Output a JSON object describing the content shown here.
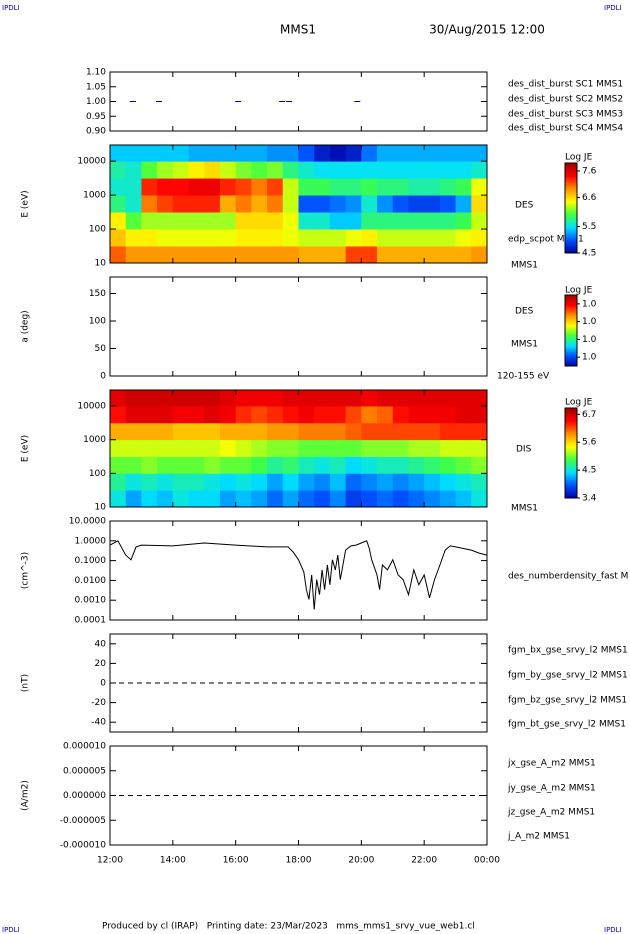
{
  "header": {
    "tag_left": "IPDLI",
    "tag_right": "IPDLI",
    "title": "MMS1",
    "date": "30/Aug/2015 12:00"
  },
  "footer": {
    "tag_left": "IPDLI",
    "tag_right": "IPDLI",
    "text": "Produced by cl (IRAP)   Printing date: 23/Mar/2023   mms_mms1_srvy_vue_web1.cl"
  },
  "colormap": [
    "#0000a0",
    "#0050ff",
    "#00e0ff",
    "#40ff40",
    "#ffff00",
    "#ff9000",
    "#ff0000",
    "#a00000"
  ],
  "chart_data": [
    {
      "type": "scatter",
      "xlim": [
        12,
        24
      ],
      "ylim": [
        0.9,
        1.1
      ],
      "yticks": [
        {
          "value": 0.9,
          "label": "0.90"
        },
        {
          "value": 0.95,
          "label": "0.95"
        },
        {
          "value": 1,
          "label": "1.00"
        },
        {
          "value": 1.05,
          "label": "1.05"
        },
        {
          "value": 1.1,
          "label": "1.10"
        }
      ],
      "series": [
        {
          "name": "des_dist_burst SC1 MMS1",
          "color": "#0000cc",
          "x": [
            12.73,
            13.56,
            16.08,
            17.48,
            17.7,
            19.87
          ],
          "values": [
            1,
            1,
            1,
            1,
            1,
            1
          ]
        },
        {
          "name": "des_dist_burst SC2 MMS2",
          "color": "#cc00cc"
        },
        {
          "name": "des_dist_burst SC3 MMS3",
          "color": "#dd0000"
        },
        {
          "name": "des_dist_burst SC4 MMS4",
          "color": "#00bb00"
        }
      ]
    },
    {
      "type": "heatmap",
      "ylabel": "E (eV)",
      "ylog": true,
      "xlim": [
        12,
        24
      ],
      "ylim": [
        10,
        30000
      ],
      "yticks": [
        10,
        100,
        1000,
        10000
      ],
      "xbins": [
        12,
        12.5,
        13,
        13.5,
        14,
        14.5,
        15,
        15.5,
        16,
        16.5,
        17,
        17.5,
        18,
        18.5,
        19,
        19.5,
        20,
        20.5,
        21,
        21.5,
        22,
        22.5,
        23,
        23.5,
        24
      ],
      "ybins": [
        10,
        31.6,
        100,
        316,
        1000,
        3162,
        10000,
        30000
      ],
      "z": [
        [
          7.1,
          6.9,
          6.9,
          6.9,
          6.9,
          6.9,
          6.9,
          6.9,
          6.9,
          6.9,
          6.9,
          6.9,
          6.8,
          6.8,
          6.8,
          7.2,
          7.2,
          6.8,
          6.8,
          6.8,
          6.8,
          6.8,
          6.8,
          6.9
        ],
        [
          6.7,
          6.5,
          6.5,
          6.4,
          6.4,
          6.4,
          6.4,
          6.4,
          6.5,
          6.5,
          6.5,
          6.4,
          6.3,
          6.3,
          6.3,
          6.4,
          6.5,
          6.3,
          6.3,
          6.3,
          6.3,
          6.3,
          6.4,
          6.5
        ],
        [
          6.5,
          6.0,
          6.2,
          6.2,
          6.2,
          6.2,
          6.2,
          6.2,
          6.6,
          6.6,
          6.6,
          6.4,
          5.6,
          5.6,
          5.4,
          5.4,
          5.8,
          5.8,
          5.8,
          5.8,
          5.8,
          5.8,
          5.9,
          6.3
        ],
        [
          5.8,
          5.6,
          7.0,
          7.2,
          7.3,
          7.3,
          7.3,
          6.8,
          7.0,
          6.8,
          7.0,
          6.3,
          5.0,
          5.0,
          5.1,
          5.2,
          5.6,
          5.2,
          5.0,
          4.9,
          4.9,
          5.0,
          5.3,
          6.6
        ],
        [
          5.6,
          5.6,
          7.3,
          7.4,
          7.4,
          7.5,
          7.5,
          7.3,
          7.2,
          7.0,
          7.2,
          6.3,
          5.9,
          5.9,
          5.8,
          5.8,
          5.9,
          5.8,
          5.8,
          5.7,
          5.7,
          5.8,
          5.9,
          6.4
        ],
        [
          5.7,
          5.6,
          6.0,
          6.2,
          6.3,
          6.5,
          6.6,
          6.3,
          6.1,
          6.0,
          6.1,
          5.8,
          5.6,
          5.5,
          5.5,
          5.5,
          5.5,
          5.5,
          5.5,
          5.5,
          5.5,
          5.5,
          5.5,
          5.6
        ],
        [
          5.4,
          5.4,
          5.4,
          5.4,
          5.4,
          5.3,
          5.3,
          5.3,
          5.3,
          5.3,
          5.2,
          5.2,
          5.0,
          4.7,
          4.6,
          4.7,
          5.1,
          5.3,
          5.3,
          5.3,
          5.3,
          5.3,
          5.3,
          5.3
        ]
      ],
      "colorbar": {
        "title": "Log JE",
        "clim": [
          4.5,
          7.9
        ],
        "ticks": [
          7.6,
          6.6,
          5.5,
          4.5
        ]
      },
      "labels": [
        "DES",
        "edp_scpot MMS1",
        "MMS1"
      ]
    },
    {
      "type": "heatmap",
      "ylabel": "a (deg)",
      "xlim": [
        12,
        24
      ],
      "ylim": [
        0,
        180
      ],
      "yticks": [
        0,
        50,
        100,
        150
      ],
      "colorbar": {
        "title": "Log JE",
        "clim": [
          0.96,
          1.04
        ],
        "ticks": [
          {
            "value": 1.03,
            "label": "1.0"
          },
          {
            "value": 1.01,
            "label": "1.0"
          },
          {
            "value": 0.99,
            "label": "1.0"
          },
          {
            "value": 0.97,
            "label": "1.0"
          }
        ]
      },
      "labels": [
        "DES",
        "MMS1",
        "120-155 eV"
      ]
    },
    {
      "type": "heatmap",
      "ylabel": "E (eV)",
      "ylog": true,
      "xlim": [
        12,
        24
      ],
      "ylim": [
        10,
        30000
      ],
      "yticks": [
        10,
        100,
        1000,
        10000
      ],
      "xbins": [
        12,
        12.5,
        13,
        13.5,
        14,
        14.5,
        15,
        15.5,
        16,
        16.5,
        17,
        17.5,
        18,
        18.5,
        19,
        19.5,
        20,
        20.5,
        21,
        21.5,
        22,
        22.5,
        23,
        23.5,
        24
      ],
      "ybins": [
        10,
        31.6,
        100,
        316,
        1000,
        3162,
        10000,
        30000
      ],
      "z": [
        [
          4.5,
          4.2,
          4.4,
          4.3,
          4.5,
          4.4,
          4.4,
          4.2,
          4.3,
          4.2,
          4.0,
          4.2,
          4.0,
          3.9,
          4.1,
          3.8,
          3.9,
          4.0,
          3.9,
          4.0,
          4.1,
          4.2,
          4.3,
          4.5
        ],
        [
          4.7,
          4.5,
          4.6,
          4.5,
          4.6,
          4.6,
          4.5,
          4.4,
          4.5,
          4.4,
          4.2,
          4.4,
          4.2,
          4.1,
          4.3,
          4.0,
          4.1,
          4.2,
          4.1,
          4.2,
          4.3,
          4.4,
          4.5,
          4.6
        ],
        [
          5.0,
          5.0,
          5.1,
          5.0,
          5.0,
          5.0,
          5.1,
          5.0,
          5.0,
          4.9,
          4.7,
          4.8,
          4.6,
          4.5,
          4.6,
          4.4,
          4.5,
          4.6,
          4.6,
          4.7,
          4.8,
          4.9,
          5.0,
          5.1
        ],
        [
          5.3,
          5.3,
          5.3,
          5.3,
          5.3,
          5.3,
          5.3,
          5.4,
          5.3,
          5.2,
          5.1,
          5.1,
          5.0,
          5.0,
          5.0,
          5.0,
          5.1,
          5.1,
          5.1,
          5.2,
          5.2,
          5.3,
          5.3,
          5.3
        ],
        [
          5.8,
          5.8,
          5.8,
          5.8,
          5.7,
          5.7,
          5.7,
          5.8,
          5.8,
          5.8,
          5.9,
          5.9,
          6.0,
          6.0,
          6.0,
          6.1,
          6.2,
          6.2,
          6.2,
          6.2,
          6.2,
          6.3,
          6.3,
          6.3
        ],
        [
          6.4,
          6.6,
          6.6,
          6.6,
          6.5,
          6.5,
          6.6,
          6.5,
          6.3,
          6.2,
          6.3,
          6.4,
          6.5,
          6.4,
          6.4,
          6.2,
          6.0,
          6.1,
          6.4,
          6.5,
          6.5,
          6.5,
          6.6,
          6.6
        ],
        [
          6.6,
          6.7,
          6.7,
          6.7,
          6.7,
          6.7,
          6.7,
          6.6,
          6.5,
          6.5,
          6.5,
          6.6,
          6.6,
          6.6,
          6.6,
          6.6,
          6.5,
          6.6,
          6.6,
          6.6,
          6.6,
          6.6,
          6.6,
          6.6
        ]
      ],
      "colorbar": {
        "title": "Log JE",
        "clim": [
          3.4,
          6.95
        ],
        "ticks": [
          6.7,
          5.6,
          4.5,
          3.4
        ]
      },
      "labels": [
        "DIS",
        "MMS1"
      ]
    },
    {
      "type": "line",
      "ylabel": "(cm^-3)",
      "ylog": true,
      "xlim": [
        12,
        24
      ],
      "ylim": [
        0.0001,
        10
      ],
      "yticks": [
        {
          "value": 10,
          "label": "10.0000"
        },
        {
          "value": 1,
          "label": "1.0000"
        },
        {
          "value": 0.1,
          "label": "0.1000"
        },
        {
          "value": 0.01,
          "label": "0.0100"
        },
        {
          "value": 0.001,
          "label": "0.0010"
        },
        {
          "value": 0.0001,
          "label": "0.0001"
        }
      ],
      "series": [
        {
          "name": "des_numberdensity_fast M",
          "color": "#000000",
          "x": [
            12.0,
            12.25,
            12.5,
            12.67,
            12.83,
            13.0,
            14.0,
            15.0,
            16.0,
            17.0,
            17.67,
            17.83,
            18.0,
            18.17,
            18.25,
            18.33,
            18.42,
            18.5,
            18.58,
            18.67,
            18.75,
            18.83,
            18.92,
            19.0,
            19.08,
            19.17,
            19.25,
            19.33,
            19.5,
            19.67,
            19.83,
            20.0,
            20.17,
            20.25,
            20.33,
            20.5,
            20.58,
            20.67,
            20.83,
            21.0,
            21.17,
            21.33,
            21.5,
            21.67,
            21.83,
            22.0,
            22.17,
            22.33,
            22.5,
            22.67,
            22.83,
            23.0,
            23.5,
            23.75,
            24.0
          ],
          "values": [
            0.61,
            1.0,
            0.19,
            0.11,
            0.49,
            0.61,
            0.55,
            0.77,
            0.61,
            0.49,
            0.49,
            0.27,
            0.11,
            0.027,
            0.0034,
            0.0011,
            0.019,
            0.00034,
            0.011,
            0.0019,
            0.034,
            0.0034,
            0.06,
            0.006,
            0.11,
            0.034,
            0.19,
            0.011,
            0.34,
            0.55,
            0.61,
            0.77,
            1.0,
            0.43,
            0.11,
            0.019,
            0.0034,
            0.06,
            0.034,
            0.11,
            0.019,
            0.011,
            0.0019,
            0.034,
            0.006,
            0.019,
            0.0013,
            0.011,
            0.06,
            0.34,
            0.55,
            0.49,
            0.34,
            0.24,
            0.19
          ]
        }
      ]
    },
    {
      "type": "line",
      "ylabel": "(nT)",
      "xlim": [
        12,
        24
      ],
      "ylim": [
        -50,
        50
      ],
      "yticks": [
        -40,
        -20,
        0,
        20,
        40
      ],
      "reference_line": 0,
      "series": [
        {
          "name": "fgm_bx_gse_srvy_l2 MMS1",
          "color": "#dd0000"
        },
        {
          "name": "fgm_by_gse_srvy_l2 MMS1",
          "color": "#00bb00"
        },
        {
          "name": "fgm_bz_gse_srvy_l2 MMS1",
          "color": "#0000cc"
        },
        {
          "name": "fgm_bt_gse_srvy_l2 MMS1",
          "color": "#000000"
        }
      ]
    },
    {
      "type": "line",
      "ylabel": "(A/m2)",
      "xlim": [
        12,
        24
      ],
      "ylim": [
        -1e-05,
        1e-05
      ],
      "yticks": [
        {
          "value": -1e-05,
          "label": "-0.000010"
        },
        {
          "value": -5e-06,
          "label": "-0.000005"
        },
        {
          "value": 0,
          "label": "0.000000"
        },
        {
          "value": 5e-06,
          "label": "0.000005"
        },
        {
          "value": 1e-05,
          "label": "0.000010"
        }
      ],
      "reference_line": 0,
      "xticks": [
        {
          "value": 12,
          "label": "12:00"
        },
        {
          "value": 14,
          "label": "14:00"
        },
        {
          "value": 16,
          "label": "16:00"
        },
        {
          "value": 18,
          "label": "18:00"
        },
        {
          "value": 20,
          "label": "20:00"
        },
        {
          "value": 22,
          "label": "22:00"
        },
        {
          "value": 24,
          "label": "00:00"
        }
      ],
      "series": [
        {
          "name": "jx_gse_A_m2 MMS1",
          "color": "#dd0000"
        },
        {
          "name": "jy_gse_A_m2 MMS1",
          "color": "#00bb00"
        },
        {
          "name": "jz_gse_A_m2 MMS1",
          "color": "#0000cc"
        },
        {
          "name": "j_A_m2 MMS1",
          "color": "#000000"
        }
      ]
    }
  ]
}
